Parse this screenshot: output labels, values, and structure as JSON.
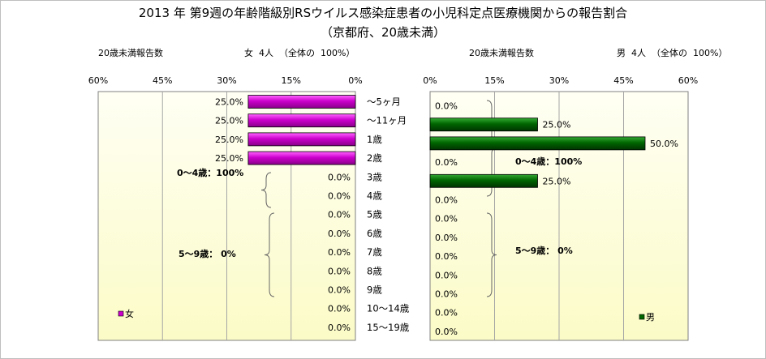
{
  "title": {
    "line1": "2013 年 第9週の年齢階級別RSウイルス感染症患者の小児科定点医療機関からの報告割合",
    "line2": "（京都府、20歳未満）"
  },
  "header": {
    "left_count_label": "20歳未満報告数",
    "left_total": "女  4人  （全体の  100%）",
    "right_count_label": "20歳未満報告数",
    "right_total": "男  4人  （全体の  100%）"
  },
  "colors": {
    "female": "#cc00cc",
    "male": "#006600",
    "plot_bg_top": "#fffff4",
    "plot_bg_bottom": "#fbfbc7"
  },
  "chart_data": [
    {
      "type": "bar",
      "orientation": "horizontal",
      "x_reversed": true,
      "categories": [
        "～5ヶ月",
        "～11ヶ月",
        "1歳",
        "2歳",
        "3歳",
        "4歳",
        "5歳",
        "6歳",
        "7歳",
        "8歳",
        "9歳",
        "10～14歳",
        "15～19歳"
      ],
      "series": [
        {
          "name": "女",
          "values": [
            25.0,
            25.0,
            25.0,
            25.0,
            0.0,
            0.0,
            0.0,
            0.0,
            0.0,
            0.0,
            0.0,
            0.0,
            0.0
          ]
        }
      ],
      "value_labels": [
        "25.0%",
        "25.0%",
        "25.0%",
        "25.0%",
        "0.0%",
        "0.0%",
        "0.0%",
        "0.0%",
        "0.0%",
        "0.0%",
        "0.0%",
        "0.0%",
        "0.0%"
      ],
      "xlim": [
        0,
        60
      ],
      "xticks": [
        "60%",
        "45%",
        "30%",
        "15%",
        "0%"
      ],
      "annotations": [
        "0～4歳：100%",
        "5～9歳：  0%"
      ],
      "legend": "bottom-left",
      "grid": true
    },
    {
      "type": "bar",
      "orientation": "horizontal",
      "categories": [
        "～5ヶ月",
        "～11ヶ月",
        "1歳",
        "2歳",
        "3歳",
        "4歳",
        "5歳",
        "6歳",
        "7歳",
        "8歳",
        "9歳",
        "10～14歳",
        "15～19歳"
      ],
      "series": [
        {
          "name": "男",
          "values": [
            0.0,
            25.0,
            50.0,
            0.0,
            25.0,
            0.0,
            0.0,
            0.0,
            0.0,
            0.0,
            0.0,
            0.0,
            0.0
          ]
        }
      ],
      "value_labels": [
        "0.0%",
        "25.0%",
        "50.0%",
        "0.0%",
        "25.0%",
        "0.0%",
        "0.0%",
        "0.0%",
        "0.0%",
        "0.0%",
        "0.0%",
        "0.0%",
        "0.0%"
      ],
      "xlim": [
        0,
        60
      ],
      "xticks": [
        "0%",
        "15%",
        "30%",
        "45%",
        "60%"
      ],
      "annotations": [
        "0～4歳：100%",
        "5～9歳：  0%"
      ],
      "legend": "bottom-right",
      "grid": true
    }
  ]
}
